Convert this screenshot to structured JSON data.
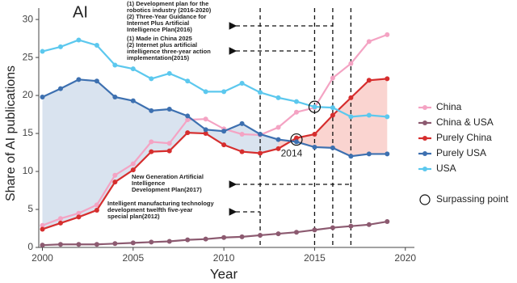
{
  "chart_data": {
    "type": "line",
    "panel_label": "AI",
    "x_label": "Year",
    "y_label": "Share of AI publications",
    "x": [
      2000,
      2001,
      2002,
      2003,
      2004,
      2005,
      2006,
      2007,
      2008,
      2009,
      2010,
      2011,
      2012,
      2013,
      2014,
      2015,
      2016,
      2017,
      2018,
      2019
    ],
    "xlim": [
      1999.8,
      2020.5
    ],
    "xticks": [
      2000,
      2005,
      2010,
      2015,
      2020
    ],
    "ylim": [
      0,
      31.5
    ],
    "yticks": [
      0,
      5,
      10,
      15,
      20,
      25,
      30
    ],
    "series": [
      {
        "name": "China",
        "color": "#f4a3c3",
        "values": [
          2.9,
          3.8,
          4.5,
          5.6,
          9.5,
          11.0,
          13.9,
          13.7,
          16.8,
          16.9,
          15.6,
          14.9,
          14.8,
          15.8,
          17.8,
          18.4,
          22.3,
          24.2,
          27.1,
          28.0
        ]
      },
      {
        "name": "China & USA",
        "color": "#8c5a70",
        "values": [
          0.3,
          0.4,
          0.4,
          0.4,
          0.5,
          0.6,
          0.7,
          0.8,
          1.0,
          1.1,
          1.3,
          1.4,
          1.6,
          1.8,
          2.0,
          2.3,
          2.6,
          2.8,
          3.0,
          3.4
        ]
      },
      {
        "name": "Purely China",
        "color": "#d62e2e",
        "values": [
          2.4,
          3.2,
          4.0,
          4.9,
          8.6,
          10.2,
          12.6,
          12.7,
          15.1,
          15.0,
          13.5,
          12.6,
          12.4,
          13.0,
          14.4,
          14.9,
          17.4,
          19.7,
          22.0,
          22.2
        ]
      },
      {
        "name": "Purely USA",
        "color": "#3d70b0",
        "values": [
          19.8,
          20.9,
          22.1,
          21.9,
          19.8,
          19.3,
          18.0,
          18.2,
          17.3,
          15.5,
          15.3,
          16.3,
          14.9,
          14.2,
          13.9,
          13.2,
          13.1,
          12.0,
          12.3,
          12.3
        ]
      },
      {
        "name": "USA",
        "color": "#5cc8ee",
        "values": [
          25.8,
          26.4,
          27.3,
          26.6,
          24.0,
          23.5,
          22.2,
          22.9,
          21.9,
          20.5,
          20.5,
          21.6,
          20.4,
          19.7,
          19.2,
          18.5,
          18.4,
          17.2,
          17.4,
          17.2
        ]
      }
    ],
    "surpassing_legend": "Surpassing point",
    "surpassing_points": [
      {
        "x": 2014,
        "y": 14.2,
        "label": "2014"
      },
      {
        "x": 2015,
        "y": 18.5
      }
    ],
    "policies": [
      {
        "year": 2016,
        "lines": [
          "(1) Development plan for the",
          "robotics industry (2016-2020)",
          "(2) Three-Year Guidance for",
          "Internet Plus Artificial",
          "Intelligence Plan(2016)"
        ]
      },
      {
        "year": 2015,
        "lines": [
          "(1) Made in China 2025",
          "(2) Internet plus artificial",
          "intelligence three-year action",
          "implementation(2015)"
        ]
      },
      {
        "year": 2017,
        "lines": [
          "New Generation Artificial",
          "Intelligence",
          "Development Plan(2017)"
        ]
      },
      {
        "year": 2012,
        "lines": [
          "Intelligent manufacturing technology",
          "development twelfth five-year",
          "special plan(2012)"
        ]
      }
    ]
  }
}
